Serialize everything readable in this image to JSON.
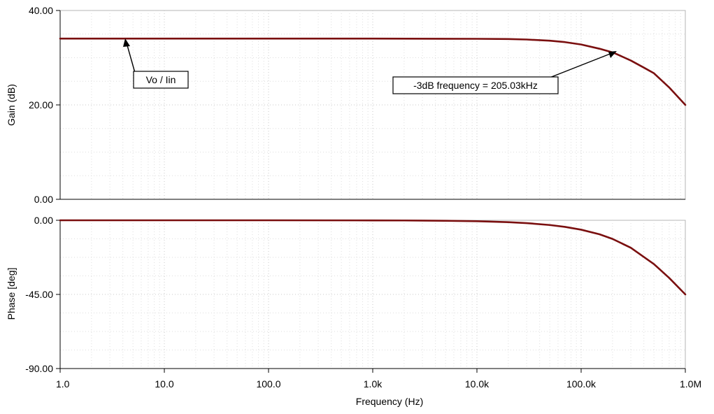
{
  "chart_data": [
    {
      "type": "line",
      "ylabel": "Gain (dB)",
      "xscale": "log",
      "xlim": [
        1,
        1000000
      ],
      "ylim": [
        0,
        40
      ],
      "yticks": [
        "0.00",
        "20.00",
        "40.00"
      ],
      "grid": true,
      "series": [
        {
          "color": "#7a0f0f",
          "x": [
            1,
            10,
            100,
            1000,
            10000,
            20000,
            30000,
            50000,
            70000,
            100000,
            150000,
            205030,
            300000,
            400000,
            500000,
            700000,
            1000000
          ],
          "y": [
            34.05,
            34.05,
            34.05,
            34.05,
            34.0,
            33.95,
            33.85,
            33.6,
            33.3,
            32.8,
            31.9,
            31.05,
            29.4,
            27.9,
            26.7,
            23.7,
            20.0
          ]
        }
      ],
      "annotations": [
        {
          "text": "Vo / Iin",
          "x": 4,
          "y": 34.05
        },
        {
          "text": "-3dB frequency = 205.03kHz",
          "x": 205030,
          "y": 31.05
        }
      ]
    },
    {
      "type": "line",
      "ylabel": "Phase [deg]",
      "xlabel": "Frequency (Hz)",
      "xscale": "log",
      "xlim": [
        1,
        1000000
      ],
      "ylim": [
        -90,
        0
      ],
      "yticks": [
        "-90.00",
        "-45.00",
        "0.00"
      ],
      "xticks": [
        "1.0",
        "10.0",
        "100.0",
        "1.0k",
        "10.0k",
        "100.0k",
        "1.0M"
      ],
      "grid": true,
      "series": [
        {
          "color": "#7a0f0f",
          "x": [
            1,
            10,
            100,
            1000,
            2000,
            3000,
            5000,
            10000,
            20000,
            30000,
            50000,
            70000,
            100000,
            150000,
            200000,
            300000,
            500000,
            700000,
            1000000
          ],
          "y": [
            0,
            0,
            0,
            -0.06,
            -0.11,
            -0.17,
            -0.29,
            -0.57,
            -1.15,
            -1.72,
            -2.86,
            -4.0,
            -5.7,
            -8.5,
            -11.3,
            -16.7,
            -26.6,
            -35.0,
            -45.0
          ]
        }
      ]
    }
  ]
}
